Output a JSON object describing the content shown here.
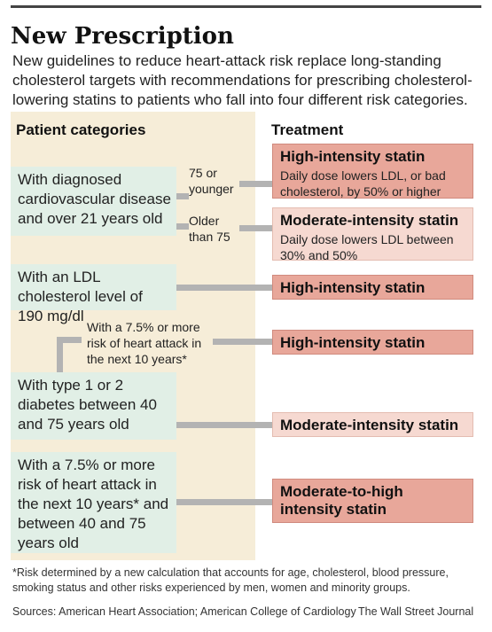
{
  "title": "New Prescription",
  "subtitle": "New guidelines to reduce heart-attack risk replace long-standing cholesterol targets with recommendations for prescribing cholesterol-lowering statins to patients who fall into four different risk categories.",
  "headers": {
    "patients": "Patient categories",
    "treatment": "Treatment"
  },
  "patients": {
    "cardio": "With diagnosed cardiovascular disease and over 21 years old",
    "ldl": "With an LDL cholesterol level of 190 mg/dl",
    "diabetes": "With type 1 or 2 diabetes between 40 and 75 years old",
    "risk": "With a 7.5% or more risk of heart attack in the next 10 years* and between 40 and 75 years old"
  },
  "branches": {
    "young": "75 or younger",
    "older": "Older than 75",
    "diabetes_risk": "With a 7.5% or more risk of heart attack in the next 10 years*"
  },
  "treatments": {
    "t1": {
      "title": "High-intensity statin",
      "desc": "Daily dose lowers LDL, or bad cholesterol, by 50% or higher"
    },
    "t2": {
      "title": "Moderate-intensity statin",
      "desc": "Daily dose lowers LDL between 30% and 50%"
    },
    "t3": {
      "title": "High-intensity statin"
    },
    "t4": {
      "title": "High-intensity statin"
    },
    "t5": {
      "title": "Moderate-intensity statin"
    },
    "t6": {
      "title": "Moderate-to-high intensity statin"
    }
  },
  "footnote": "*Risk determined by a new calculation that accounts for age, cholesterol, blood pressure, smoking status and other risks experienced by men, women and minority groups.",
  "sources": "Sources: American Heart Association; American College of Cardiology",
  "credit": "The Wall Street Journal",
  "colors": {
    "panel": "#f6edd8",
    "patient_box": "#e1efe6",
    "high": "#e8a79a",
    "moderate": "#f6d9d1",
    "connector": "#b3b3b3"
  }
}
